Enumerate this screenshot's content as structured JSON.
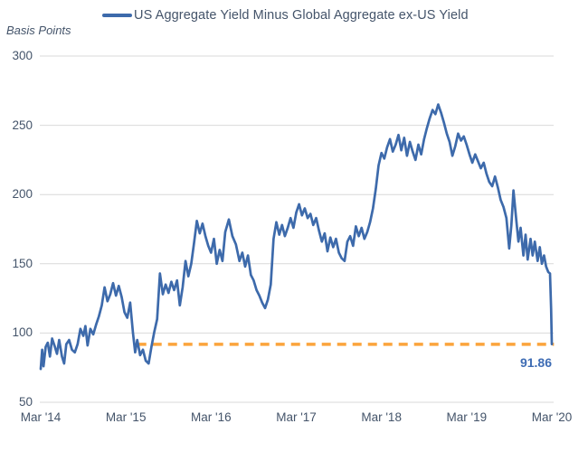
{
  "chart_data": {
    "type": "line",
    "legend": "US Aggregate Yield Minus Global Aggregate ex-US Yield",
    "ylabel": "Basis Points",
    "ylim": [
      50,
      300
    ],
    "yticks": [
      50,
      100,
      150,
      200,
      250,
      300
    ],
    "xtick_labels": [
      "Mar '14",
      "Mar '15",
      "Mar '16",
      "Mar '17",
      "Mar '18",
      "Mar '19",
      "Mar '20"
    ],
    "x_unit": "months since Mar 2014",
    "x_range_months": [
      0,
      72
    ],
    "grid": "horizontal",
    "legend_position": "top-center",
    "colors": {
      "line": "#3d6aab",
      "reference_line": "#fba43c",
      "text": "#44546a",
      "annotation_text": "#3e6cb4",
      "grid": "#d9d9d9",
      "background": "#ffffff"
    },
    "reference_line": {
      "value": 91.86,
      "label": "91.86",
      "style": "dashed",
      "start_month": 13.6,
      "end_month": 72.3
    },
    "series": [
      {
        "name": "US Aggregate Yield Minus Global Aggregate ex-US Yield",
        "points": [
          [
            0,
            74
          ],
          [
            0.2,
            88
          ],
          [
            0.4,
            76
          ],
          [
            0.7,
            90
          ],
          [
            1,
            93
          ],
          [
            1.3,
            83
          ],
          [
            1.6,
            96
          ],
          [
            2,
            90
          ],
          [
            2.3,
            85
          ],
          [
            2.6,
            95
          ],
          [
            3,
            83
          ],
          [
            3.3,
            78
          ],
          [
            3.6,
            92
          ],
          [
            4,
            95
          ],
          [
            4.4,
            88
          ],
          [
            4.8,
            86
          ],
          [
            5.2,
            92
          ],
          [
            5.6,
            103
          ],
          [
            6,
            98
          ],
          [
            6.3,
            105
          ],
          [
            6.6,
            91
          ],
          [
            7,
            103
          ],
          [
            7.4,
            99
          ],
          [
            7.8,
            106
          ],
          [
            8.2,
            112
          ],
          [
            8.6,
            120
          ],
          [
            9,
            133
          ],
          [
            9.4,
            123
          ],
          [
            9.8,
            128
          ],
          [
            10.2,
            136
          ],
          [
            10.6,
            127
          ],
          [
            11,
            134
          ],
          [
            11.4,
            126
          ],
          [
            11.8,
            115
          ],
          [
            12.2,
            111
          ],
          [
            12.6,
            122
          ],
          [
            13,
            100
          ],
          [
            13.3,
            86
          ],
          [
            13.6,
            95
          ],
          [
            14,
            84
          ],
          [
            14.4,
            88
          ],
          [
            14.8,
            80
          ],
          [
            15.2,
            78
          ],
          [
            15.6,
            90
          ],
          [
            16,
            101
          ],
          [
            16.4,
            110
          ],
          [
            16.8,
            143
          ],
          [
            17.2,
            128
          ],
          [
            17.6,
            135
          ],
          [
            18,
            129
          ],
          [
            18.4,
            137
          ],
          [
            18.8,
            131
          ],
          [
            19.2,
            138
          ],
          [
            19.6,
            120
          ],
          [
            20,
            133
          ],
          [
            20.4,
            152
          ],
          [
            20.8,
            141
          ],
          [
            21.2,
            150
          ],
          [
            21.6,
            165
          ],
          [
            22,
            181
          ],
          [
            22.4,
            172
          ],
          [
            22.8,
            179
          ],
          [
            23.2,
            170
          ],
          [
            23.6,
            163
          ],
          [
            24,
            158
          ],
          [
            24.4,
            168
          ],
          [
            24.8,
            150
          ],
          [
            25.2,
            160
          ],
          [
            25.6,
            152
          ],
          [
            26,
            173
          ],
          [
            26.5,
            182
          ],
          [
            27,
            170
          ],
          [
            27.5,
            164
          ],
          [
            28,
            152
          ],
          [
            28.4,
            158
          ],
          [
            28.8,
            148
          ],
          [
            29.2,
            156
          ],
          [
            29.6,
            142
          ],
          [
            30,
            138
          ],
          [
            30.4,
            131
          ],
          [
            30.8,
            127
          ],
          [
            31.2,
            122
          ],
          [
            31.6,
            118
          ],
          [
            32,
            124
          ],
          [
            32.4,
            135
          ],
          [
            32.8,
            168
          ],
          [
            33.2,
            180
          ],
          [
            33.6,
            171
          ],
          [
            34,
            178
          ],
          [
            34.4,
            170
          ],
          [
            34.8,
            176
          ],
          [
            35.2,
            183
          ],
          [
            35.6,
            176
          ],
          [
            36,
            187
          ],
          [
            36.4,
            193
          ],
          [
            36.8,
            185
          ],
          [
            37.2,
            190
          ],
          [
            37.6,
            183
          ],
          [
            38,
            186
          ],
          [
            38.4,
            178
          ],
          [
            38.8,
            183
          ],
          [
            39.2,
            174
          ],
          [
            39.6,
            166
          ],
          [
            40,
            172
          ],
          [
            40.4,
            159
          ],
          [
            40.8,
            169
          ],
          [
            41.2,
            162
          ],
          [
            41.6,
            168
          ],
          [
            42,
            158
          ],
          [
            42.4,
            154
          ],
          [
            42.8,
            152
          ],
          [
            43.2,
            166
          ],
          [
            43.6,
            170
          ],
          [
            44,
            163
          ],
          [
            44.4,
            177
          ],
          [
            44.8,
            170
          ],
          [
            45.2,
            176
          ],
          [
            45.6,
            168
          ],
          [
            46,
            173
          ],
          [
            46.4,
            180
          ],
          [
            46.8,
            190
          ],
          [
            47.2,
            204
          ],
          [
            47.6,
            221
          ],
          [
            48,
            230
          ],
          [
            48.4,
            226
          ],
          [
            48.8,
            234
          ],
          [
            49.2,
            240
          ],
          [
            49.6,
            231
          ],
          [
            50,
            236
          ],
          [
            50.4,
            243
          ],
          [
            50.8,
            232
          ],
          [
            51.2,
            241
          ],
          [
            51.6,
            228
          ],
          [
            52,
            238
          ],
          [
            52.4,
            231
          ],
          [
            52.8,
            225
          ],
          [
            53.2,
            236
          ],
          [
            53.6,
            229
          ],
          [
            54,
            240
          ],
          [
            54.4,
            248
          ],
          [
            54.8,
            255
          ],
          [
            55.2,
            261
          ],
          [
            55.6,
            258
          ],
          [
            56,
            265
          ],
          [
            56.4,
            259
          ],
          [
            56.8,
            252
          ],
          [
            57.2,
            244
          ],
          [
            57.6,
            238
          ],
          [
            58,
            228
          ],
          [
            58.4,
            235
          ],
          [
            58.8,
            244
          ],
          [
            59.2,
            239
          ],
          [
            59.6,
            242
          ],
          [
            60,
            236
          ],
          [
            60.4,
            229
          ],
          [
            60.8,
            223
          ],
          [
            61.2,
            229
          ],
          [
            61.6,
            224
          ],
          [
            62,
            219
          ],
          [
            62.4,
            223
          ],
          [
            62.8,
            215
          ],
          [
            63.2,
            209
          ],
          [
            63.6,
            206
          ],
          [
            64,
            213
          ],
          [
            64.4,
            205
          ],
          [
            64.8,
            196
          ],
          [
            65.2,
            191
          ],
          [
            65.6,
            183
          ],
          [
            66,
            161
          ],
          [
            66.3,
            178
          ],
          [
            66.6,
            203
          ],
          [
            67,
            181
          ],
          [
            67.3,
            166
          ],
          [
            67.6,
            176
          ],
          [
            68,
            156
          ],
          [
            68.3,
            171
          ],
          [
            68.6,
            153
          ],
          [
            69,
            168
          ],
          [
            69.3,
            156
          ],
          [
            69.6,
            166
          ],
          [
            70,
            152
          ],
          [
            70.3,
            162
          ],
          [
            70.6,
            150
          ],
          [
            70.9,
            156
          ],
          [
            71.2,
            148
          ],
          [
            71.5,
            144
          ],
          [
            71.75,
            143
          ],
          [
            71.9,
            118
          ],
          [
            72,
            92
          ]
        ]
      }
    ]
  }
}
